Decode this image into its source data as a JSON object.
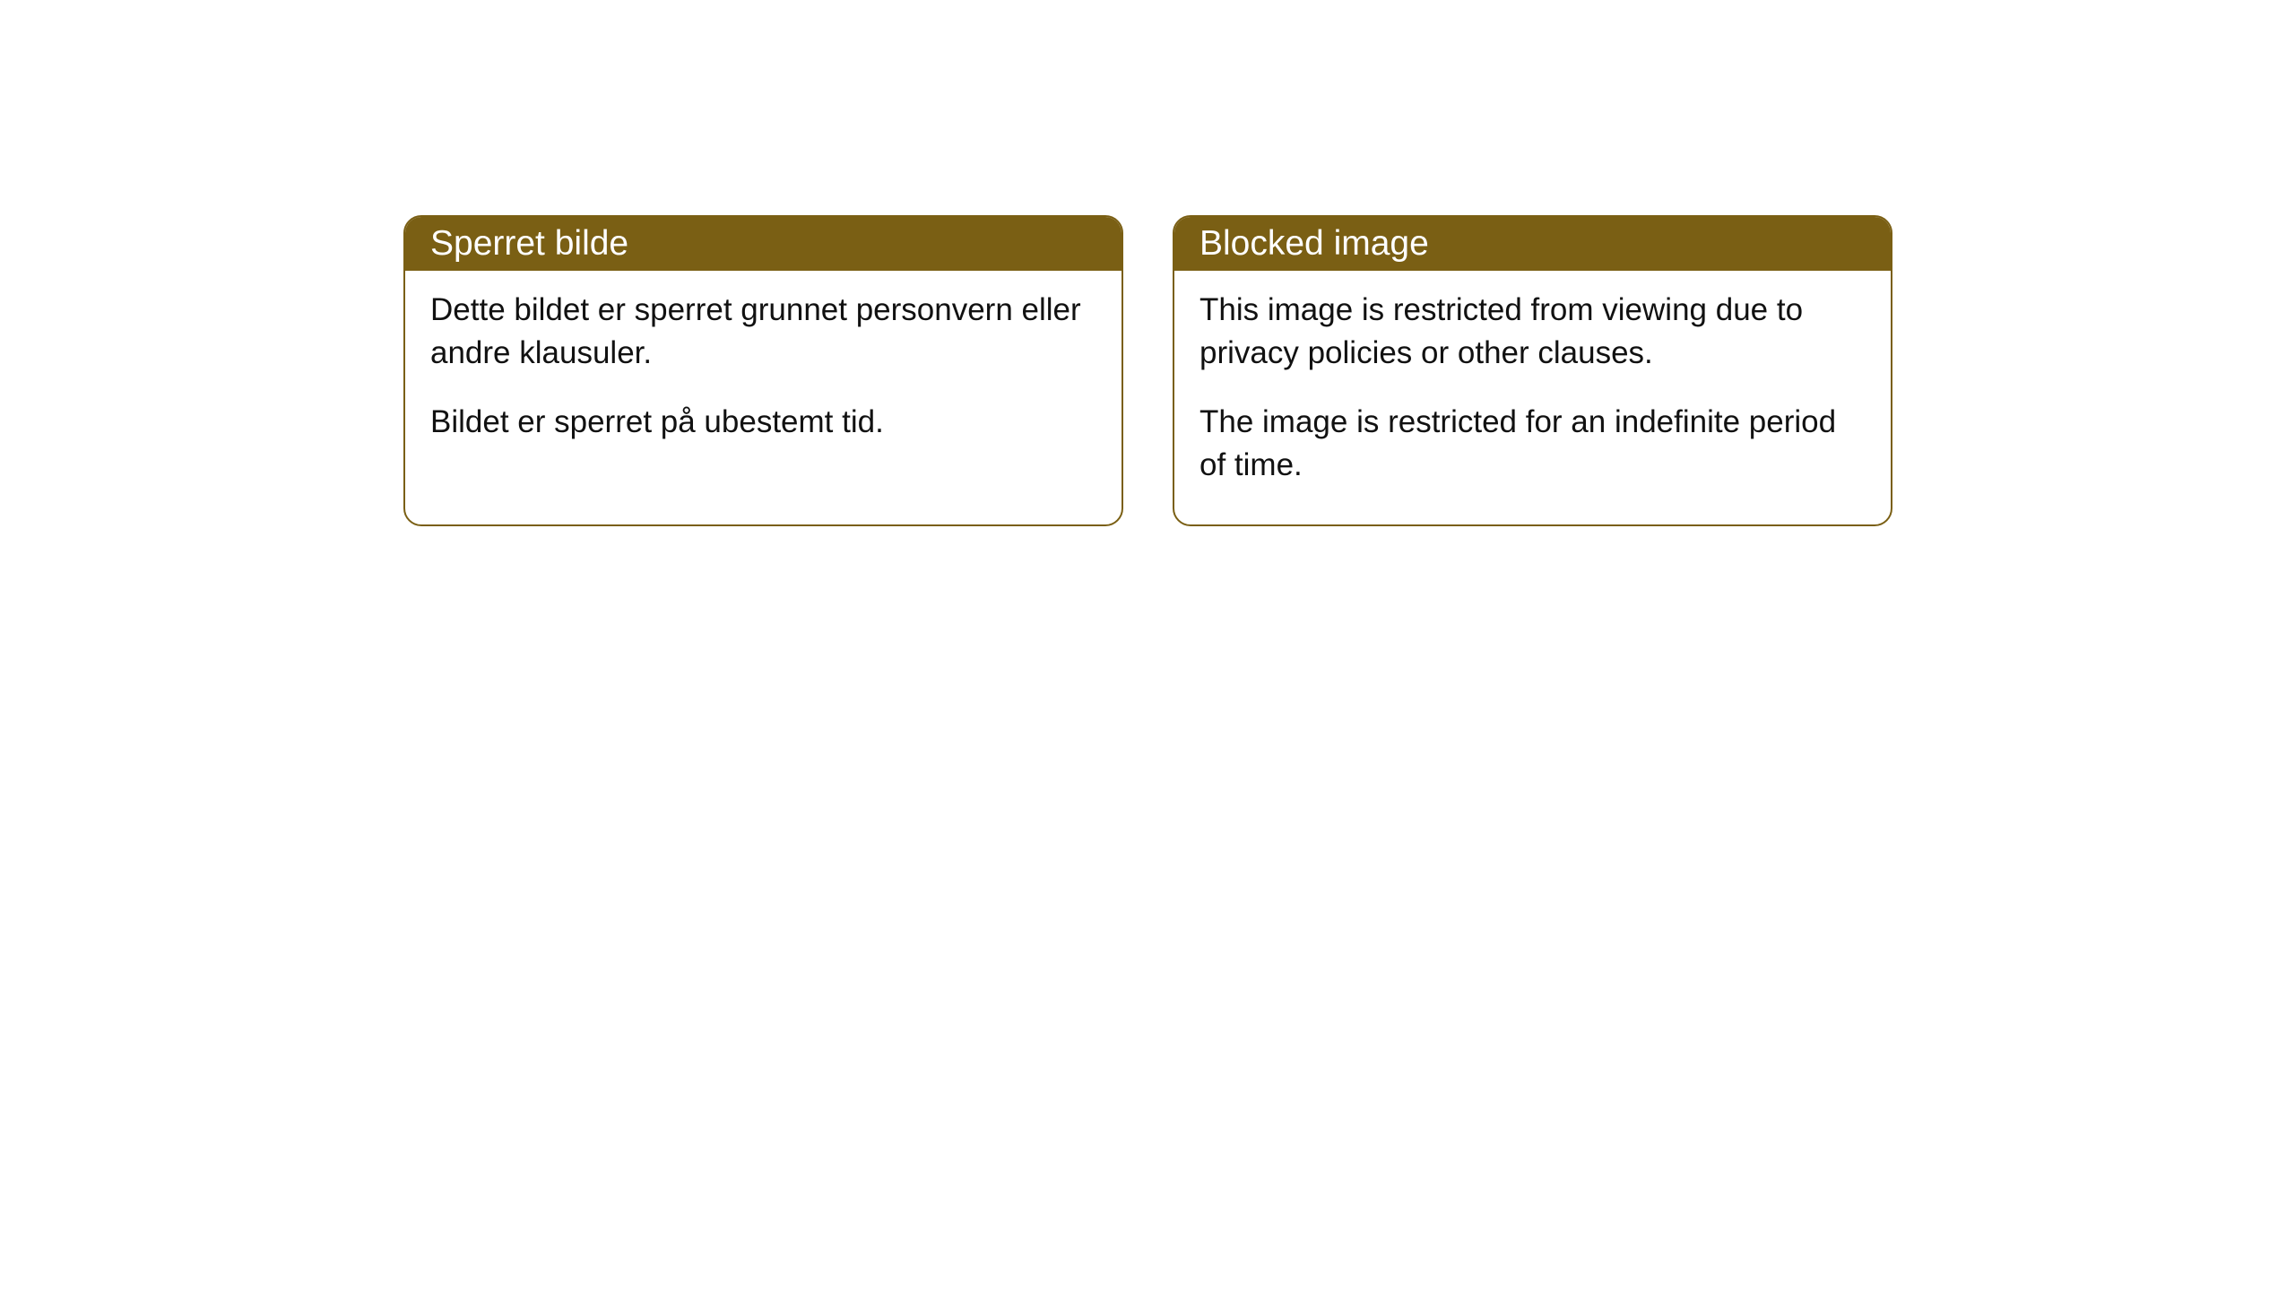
{
  "cards": {
    "norwegian": {
      "title": "Sperret bilde",
      "paragraph1": "Dette bildet er sperret grunnet personvern eller andre klausuler.",
      "paragraph2": "Bildet er sperret på ubestemt tid."
    },
    "english": {
      "title": "Blocked image",
      "paragraph1": "This image is restricted from viewing due to privacy policies or other clauses.",
      "paragraph2": "The image is restricted for an indefinite period of time."
    }
  },
  "styling": {
    "header_background": "#7a5f14",
    "header_text_color": "#ffffff",
    "body_text_color": "#111111",
    "card_border_color": "#7a5f14",
    "card_background": "#ffffff",
    "page_background": "#ffffff",
    "border_radius": 20,
    "title_fontsize": 39,
    "body_fontsize": 35
  }
}
